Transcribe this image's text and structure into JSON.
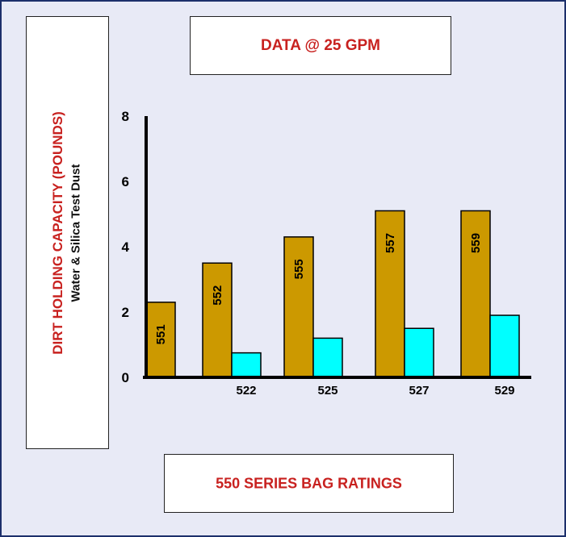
{
  "colors": {
    "frame_border": "#1c2f6b",
    "background": "#e8eaf6",
    "accent_text": "#c8211f",
    "series_550": "#cc9900",
    "series_520": "#00ffff"
  },
  "title": "DATA @ 25 GPM",
  "footer": "550 SERIES BAG RATINGS",
  "ylabel_main": "DIRT HOLDING CAPACITY (POUNDS)",
  "ylabel_sub": "Water & Silica Test Dust",
  "chart_data": {
    "type": "bar",
    "groups": [
      {
        "bar_label": "551",
        "category_label": "",
        "value_550": 2.3,
        "value_520": null
      },
      {
        "bar_label": "552",
        "category_label": "522",
        "value_550": 3.5,
        "value_520": 0.75
      },
      {
        "bar_label": "555",
        "category_label": "525",
        "value_550": 4.3,
        "value_520": 1.2
      },
      {
        "bar_label": "557",
        "category_label": "527",
        "value_550": 5.1,
        "value_520": 1.5
      },
      {
        "bar_label": "559",
        "category_label": "529",
        "value_550": 5.1,
        "value_520": 1.9
      }
    ],
    "y_ticks": [
      "0",
      "2",
      "4",
      "6",
      "8"
    ],
    "ylim": [
      0,
      8
    ],
    "grid": false
  }
}
